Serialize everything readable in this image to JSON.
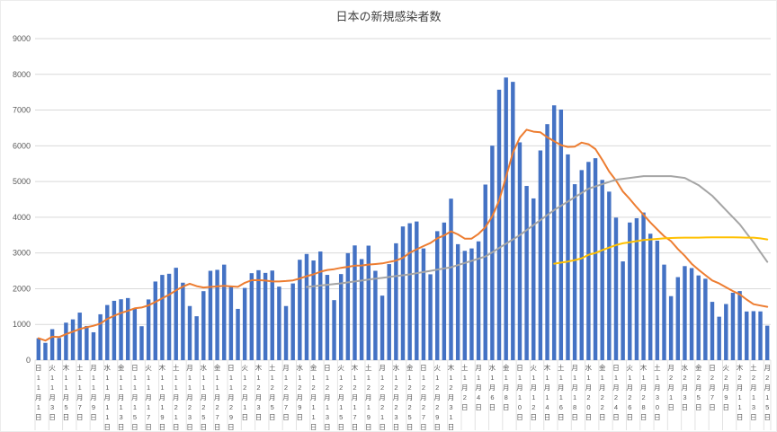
{
  "chart_data": {
    "type": "combo",
    "title": "日本の新規感染者数",
    "ylim": [
      0,
      9000
    ],
    "y_ticks": [
      0,
      1000,
      2000,
      3000,
      4000,
      5000,
      6000,
      7000,
      8000,
      9000
    ],
    "x_tick_interval_days": 2,
    "layout": {
      "grid": true,
      "grid_color": "#D9D9D9",
      "separator_color": "#E2E2E2",
      "axis_text_color": "#595959",
      "title_color": "#404040",
      "legend": "none"
    },
    "x_tick_labels": [
      "日11月1日",
      "火11月3日",
      "木11月5日",
      "土11月7日",
      "月11月9日",
      "水11月11日",
      "金11月13日",
      "日11月15日",
      "火11月17日",
      "木11月19日",
      "土11月21日",
      "月11月23日",
      "水11月25日",
      "金11月27日",
      "日11月29日",
      "火12月1日",
      "木12月3日",
      "土12月5日",
      "月12月7日",
      "水12月9日",
      "金12月11日",
      "日12月13日",
      "火12月15日",
      "木12月17日",
      "土12月19日",
      "月12月21日",
      "水12月23日",
      "金12月25日",
      "日12月27日",
      "火12月29日",
      "木12月31日",
      "土1月2日",
      "月1月4日",
      "水1月6日",
      "金1月8日",
      "日1月10日",
      "火1月12日",
      "木1月14日",
      "土1月16日",
      "月1月18日",
      "水1月20日",
      "金1月22日",
      "日1月24日",
      "火1月26日",
      "木1月28日",
      "土1月30日",
      "月2月1日",
      "水2月3日",
      "金2月5日",
      "日2月7日",
      "火2月9日",
      "木2月11日",
      "土2月13日",
      "月2月15日"
    ],
    "categories": [
      "11月1日",
      "11月2日",
      "11月3日",
      "11月4日",
      "11月5日",
      "11月6日",
      "11月7日",
      "11月8日",
      "11月9日",
      "11月10日",
      "11月11日",
      "11月12日",
      "11月13日",
      "11月14日",
      "11月15日",
      "11月16日",
      "11月17日",
      "11月18日",
      "11月19日",
      "11月20日",
      "11月21日",
      "11月22日",
      "11月23日",
      "11月24日",
      "11月25日",
      "11月26日",
      "11月27日",
      "11月28日",
      "11月29日",
      "11月30日",
      "12月1日",
      "12月2日",
      "12月3日",
      "12月4日",
      "12月5日",
      "12月6日",
      "12月7日",
      "12月8日",
      "12月9日",
      "12月10日",
      "12月11日",
      "12月12日",
      "12月13日",
      "12月14日",
      "12月15日",
      "12月16日",
      "12月17日",
      "12月18日",
      "12月19日",
      "12月20日",
      "12月21日",
      "12月22日",
      "12月23日",
      "12月24日",
      "12月25日",
      "12月26日",
      "12月27日",
      "12月28日",
      "12月29日",
      "12月30日",
      "12月31日",
      "1月1日",
      "1月2日",
      "1月3日",
      "1月4日",
      "1月5日",
      "1月6日",
      "1月7日",
      "1月8日",
      "1月9日",
      "1月10日",
      "1月11日",
      "1月12日",
      "1月13日",
      "1月14日",
      "1月15日",
      "1月16日",
      "1月17日",
      "1月18日",
      "1月19日",
      "1月20日",
      "1月21日",
      "1月22日",
      "1月23日",
      "1月24日",
      "1月25日",
      "1月26日",
      "1月27日",
      "1月28日",
      "1月29日",
      "1月30日",
      "1月31日",
      "2月1日",
      "2月2日",
      "2月3日",
      "2月4日",
      "2月5日",
      "2月6日",
      "2月7日",
      "2月8日",
      "2月9日",
      "2月10日",
      "2月11日",
      "2月12日",
      "2月13日",
      "2月14日",
      "2月15日"
    ],
    "series": [
      {
        "name": "daily-new-cases",
        "type": "bar",
        "color": "#4472C4",
        "start_index": 0,
        "values": [
          614,
          484,
          867,
          620,
          1049,
          1141,
          1331,
          957,
          780,
          1284,
          1543,
          1661,
          1704,
          1738,
          1441,
          950,
          1699,
          2201,
          2386,
          2418,
          2586,
          2168,
          1515,
          1229,
          1931,
          2501,
          2528,
          2674,
          2063,
          1435,
          2022,
          2434,
          2518,
          2442,
          2508,
          2058,
          1515,
          2147,
          2810,
          2972,
          2790,
          3041,
          2387,
          1680,
          2410,
          2994,
          3211,
          2829,
          3205,
          2501,
          1806,
          2688,
          3271,
          3742,
          3832,
          3881,
          3127,
          2403,
          3610,
          3852,
          4520,
          3246,
          3059,
          3127,
          3325,
          4915,
          6004,
          7570,
          7911,
          7790,
          6097,
          4876,
          4527,
          5870,
          6607,
          7133,
          7014,
          5759,
          4925,
          5320,
          5549,
          5653,
          5045,
          4717,
          3990,
          2764,
          3853,
          3973,
          4133,
          3539,
          3344,
          2674,
          1792,
          2324,
          2632,
          2577,
          2371,
          2279,
          1632,
          1216,
          1571,
          1887,
          1933,
          1362,
          1371,
          1364,
          965
        ]
      },
      {
        "name": "moving-average-orange",
        "type": "line",
        "color": "#ED7D31",
        "start_index": 0,
        "values": [
          614,
          549,
          655,
          646,
          727,
          796,
          872,
          921,
          964,
          1023,
          1155,
          1242,
          1323,
          1381,
          1450,
          1474,
          1534,
          1628,
          1731,
          1833,
          1954,
          2058,
          2139,
          2072,
          2033,
          2050,
          2065,
          2078,
          2063,
          2052,
          2165,
          2237,
          2239,
          2227,
          2203,
          2202,
          2214,
          2232,
          2285,
          2350,
          2400,
          2476,
          2523,
          2547,
          2584,
          2611,
          2645,
          2650,
          2674,
          2690,
          2708,
          2748,
          2787,
          2863,
          3006,
          3103,
          3192,
          3278,
          3409,
          3492,
          3604,
          3520,
          3402,
          3402,
          3534,
          3721,
          4028,
          4464,
          5130,
          5806,
          6230,
          6452,
          6396,
          6377,
          6240,
          6129,
          6018,
          5969,
          5976,
          6090,
          6044,
          5908,
          5609,
          5281,
          5028,
          4720,
          4510,
          4285,
          4068,
          3853,
          3657,
          3469,
          3330,
          3111,
          2920,
          2697,
          2531,
          2378,
          2230,
          2147,
          2040,
          1933,
          1841,
          1697,
          1567,
          1529,
          1493
        ]
      },
      {
        "name": "trend-gray",
        "type": "line",
        "color": "#A5A5A5",
        "start_index": 39,
        "values": [
          2050,
          2070,
          2090,
          2110,
          2130,
          2150,
          2176,
          2202,
          2228,
          2254,
          2280,
          2304,
          2328,
          2352,
          2376,
          2400,
          2433,
          2467,
          2500,
          2533,
          2567,
          2600,
          2660,
          2720,
          2780,
          2840,
          2900,
          3020,
          3140,
          3260,
          3380,
          3500,
          3640,
          3780,
          3920,
          4060,
          4200,
          4320,
          4440,
          4560,
          4680,
          4800,
          4863,
          4925,
          4988,
          5050,
          5075,
          5100,
          5125,
          5150,
          5150,
          5150,
          5150,
          5150,
          5125,
          5100,
          5000,
          4900,
          4750,
          4600,
          4400,
          4200,
          4000,
          3800,
          3550,
          3300,
          3025,
          2750
        ]
      },
      {
        "name": "trend-yellow",
        "type": "line",
        "color": "#FFC000",
        "start_index": 75,
        "values": [
          2700,
          2730,
          2760,
          2800,
          2850,
          2950,
          3000,
          3080,
          3150,
          3220,
          3270,
          3300,
          3330,
          3360,
          3380,
          3395,
          3410,
          3420,
          3425,
          3430,
          3430,
          3430,
          3435,
          3440,
          3440,
          3440,
          3440,
          3435,
          3430,
          3430,
          3410,
          3380
        ]
      }
    ]
  }
}
